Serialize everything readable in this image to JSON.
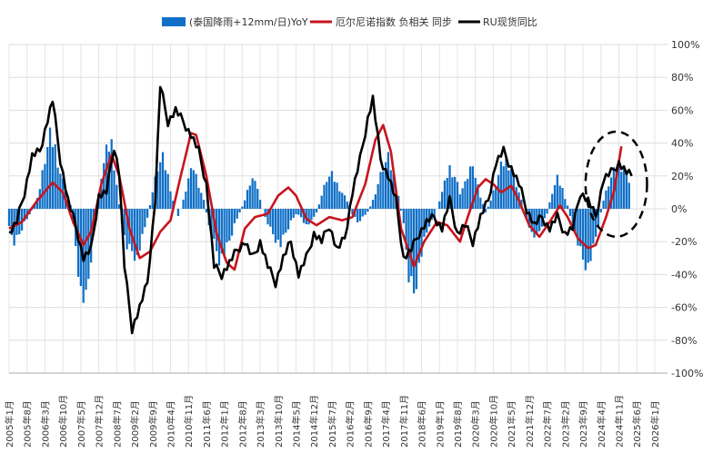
{
  "chart_data": {
    "type": "bar+line",
    "title": "",
    "legend": [
      {
        "name": "(泰国降雨+12mm/日)YoY",
        "kind": "bar",
        "color": "#0f6fc6"
      },
      {
        "name": "厄尔尼诺指数 负相关 同步",
        "kind": "line",
        "color": "#c8141e"
      },
      {
        "name": "RU现货同比",
        "kind": "line",
        "color": "#000000"
      }
    ],
    "legend_position": "top-center",
    "ylim": [
      -100,
      100
    ],
    "y_ticks": [
      "100%",
      "80%",
      "60%",
      "40%",
      "20%",
      "0%",
      "-20%",
      "-40%",
      "-60%",
      "-80%",
      "-100%"
    ],
    "y_tick_values": [
      100,
      80,
      60,
      40,
      20,
      0,
      -20,
      -40,
      -60,
      -80,
      -100
    ],
    "x_range": [
      "2005-01",
      "2026-06"
    ],
    "x_ticks": [
      "2005年1月",
      "2005年8月",
      "2006年3月",
      "2006年10月",
      "2007年5月",
      "2007年12月",
      "2008年7月",
      "2009年2月",
      "2009年9月",
      "2010年4月",
      "2010年11月",
      "2011年6月",
      "2012年1月",
      "2012年8月",
      "2013年3月",
      "2013年10月",
      "2014年5月",
      "2014年12月",
      "2015年7月",
      "2016年2月",
      "2016年9月",
      "2017年4月",
      "2017年11月",
      "2018年6月",
      "2019年1月",
      "2019年8月",
      "2020年3月",
      "2020年10月",
      "2021年5月",
      "2021年12月",
      "2022年7月",
      "2023年2月",
      "2023年9月",
      "2024年4月",
      "2024年11月",
      "2025年6月",
      "2026年1月"
    ],
    "grid": true,
    "series": [
      {
        "name": "(泰国降雨+12mm/日)YoY",
        "type": "bar",
        "anchors": [
          [
            "2005-01",
            -12
          ],
          [
            "2005-03",
            -20
          ],
          [
            "2005-05",
            -15
          ],
          [
            "2005-07",
            -8
          ],
          [
            "2005-09",
            -4
          ],
          [
            "2005-11",
            3
          ],
          [
            "2006-01",
            12
          ],
          [
            "2006-03",
            30
          ],
          [
            "2006-05",
            43
          ],
          [
            "2006-07",
            37
          ],
          [
            "2006-09",
            22
          ],
          [
            "2006-11",
            12
          ],
          [
            "2007-01",
            2
          ],
          [
            "2007-03",
            -22
          ],
          [
            "2007-05",
            -50
          ],
          [
            "2007-07",
            -58
          ],
          [
            "2007-09",
            -30
          ],
          [
            "2007-11",
            -5
          ],
          [
            "2008-01",
            20
          ],
          [
            "2008-03",
            34
          ],
          [
            "2008-05",
            40
          ],
          [
            "2008-07",
            15
          ],
          [
            "2008-09",
            -10
          ],
          [
            "2008-11",
            -22
          ],
          [
            "2009-01",
            -25
          ],
          [
            "2009-03",
            -30
          ],
          [
            "2009-05",
            -18
          ],
          [
            "2009-07",
            -5
          ],
          [
            "2009-09",
            10
          ],
          [
            "2009-11",
            25
          ],
          [
            "2010-01",
            30
          ],
          [
            "2010-03",
            20
          ],
          [
            "2010-05",
            5
          ],
          [
            "2010-07",
            -5
          ],
          [
            "2010-09",
            5
          ],
          [
            "2010-11",
            18
          ],
          [
            "2011-01",
            25
          ],
          [
            "2011-03",
            15
          ],
          [
            "2011-05",
            5
          ],
          [
            "2011-07",
            -10
          ],
          [
            "2011-09",
            -20
          ],
          [
            "2011-11",
            -30
          ],
          [
            "2012-01",
            -28
          ],
          [
            "2012-03",
            -20
          ],
          [
            "2012-05",
            -10
          ],
          [
            "2012-07",
            -2
          ],
          [
            "2012-09",
            5
          ],
          [
            "2012-11",
            15
          ],
          [
            "2013-01",
            20
          ],
          [
            "2013-03",
            5
          ],
          [
            "2013-05",
            -5
          ],
          [
            "2013-07",
            -12
          ],
          [
            "2013-09",
            -18
          ],
          [
            "2013-11",
            -22
          ],
          [
            "2014-01",
            -15
          ],
          [
            "2014-03",
            -8
          ],
          [
            "2014-05",
            -3
          ],
          [
            "2014-07",
            -5
          ],
          [
            "2014-09",
            -10
          ],
          [
            "2014-11",
            -8
          ],
          [
            "2015-01",
            -2
          ],
          [
            "2015-03",
            8
          ],
          [
            "2015-05",
            18
          ],
          [
            "2015-07",
            20
          ],
          [
            "2015-09",
            15
          ],
          [
            "2015-11",
            10
          ],
          [
            "2016-01",
            5
          ],
          [
            "2016-03",
            -3
          ],
          [
            "2016-05",
            -8
          ],
          [
            "2016-07",
            -5
          ],
          [
            "2016-09",
            -2
          ],
          [
            "2016-11",
            5
          ],
          [
            "2017-01",
            15
          ],
          [
            "2017-03",
            25
          ],
          [
            "2017-05",
            30
          ],
          [
            "2017-07",
            20
          ],
          [
            "2017-09",
            8
          ],
          [
            "2017-11",
            -10
          ],
          [
            "2018-01",
            -40
          ],
          [
            "2018-03",
            -50
          ],
          [
            "2018-05",
            -35
          ],
          [
            "2018-07",
            -20
          ],
          [
            "2018-09",
            -10
          ],
          [
            "2018-11",
            -5
          ],
          [
            "2019-01",
            5
          ],
          [
            "2019-03",
            15
          ],
          [
            "2019-05",
            25
          ],
          [
            "2019-07",
            20
          ],
          [
            "2019-09",
            10
          ],
          [
            "2019-11",
            15
          ],
          [
            "2020-01",
            25
          ],
          [
            "2020-03",
            20
          ],
          [
            "2020-05",
            8
          ],
          [
            "2020-07",
            -2
          ],
          [
            "2020-09",
            5
          ],
          [
            "2020-11",
            15
          ],
          [
            "2021-01",
            25
          ],
          [
            "2021-03",
            30
          ],
          [
            "2021-05",
            25
          ],
          [
            "2021-07",
            15
          ],
          [
            "2021-09",
            5
          ],
          [
            "2021-11",
            -5
          ],
          [
            "2022-01",
            -15
          ],
          [
            "2022-03",
            -18
          ],
          [
            "2022-05",
            -10
          ],
          [
            "2022-07",
            -3
          ],
          [
            "2022-09",
            10
          ],
          [
            "2022-11",
            18
          ],
          [
            "2023-01",
            12
          ],
          [
            "2023-03",
            2
          ],
          [
            "2023-05",
            -10
          ],
          [
            "2023-07",
            -20
          ],
          [
            "2023-09",
            -30
          ],
          [
            "2023-11",
            -35
          ],
          [
            "2024-01",
            -25
          ],
          [
            "2024-03",
            -10
          ],
          [
            "2024-05",
            5
          ],
          [
            "2024-07",
            15
          ],
          [
            "2024-09",
            22
          ],
          [
            "2024-11",
            28
          ],
          [
            "2025-01",
            25
          ],
          [
            "2025-03",
            18
          ]
        ]
      },
      {
        "name": "厄尔尼诺指数 负相关 同步",
        "type": "line",
        "anchors": [
          [
            "2005-01",
            -12
          ],
          [
            "2005-06",
            -8
          ],
          [
            "2005-12",
            5
          ],
          [
            "2006-06",
            16
          ],
          [
            "2006-10",
            10
          ],
          [
            "2007-02",
            -8
          ],
          [
            "2007-06",
            -22
          ],
          [
            "2007-09",
            -14
          ],
          [
            "2008-01",
            15
          ],
          [
            "2008-05",
            33
          ],
          [
            "2008-08",
            20
          ],
          [
            "2008-12",
            -12
          ],
          [
            "2009-04",
            -30
          ],
          [
            "2009-08",
            -26
          ],
          [
            "2009-12",
            -14
          ],
          [
            "2010-04",
            -7
          ],
          [
            "2010-08",
            20
          ],
          [
            "2010-12",
            46
          ],
          [
            "2011-02",
            45
          ],
          [
            "2011-06",
            20
          ],
          [
            "2011-10",
            -15
          ],
          [
            "2012-02",
            -33
          ],
          [
            "2012-05",
            -37
          ],
          [
            "2012-09",
            -12
          ],
          [
            "2013-01",
            -5
          ],
          [
            "2013-06",
            -3
          ],
          [
            "2013-10",
            8
          ],
          [
            "2014-02",
            13
          ],
          [
            "2014-05",
            8
          ],
          [
            "2014-09",
            -6
          ],
          [
            "2015-01",
            -10
          ],
          [
            "2015-06",
            -5
          ],
          [
            "2015-11",
            -7
          ],
          [
            "2016-03",
            -5
          ],
          [
            "2016-08",
            15
          ],
          [
            "2016-12",
            42
          ],
          [
            "2017-03",
            51
          ],
          [
            "2017-06",
            35
          ],
          [
            "2017-10",
            -12
          ],
          [
            "2018-03",
            -35
          ],
          [
            "2018-07",
            -20
          ],
          [
            "2018-12",
            -8
          ],
          [
            "2019-04",
            -10
          ],
          [
            "2019-09",
            -20
          ],
          [
            "2019-12",
            -5
          ],
          [
            "2020-04",
            13
          ],
          [
            "2020-07",
            18
          ],
          [
            "2020-10",
            15
          ],
          [
            "2021-01",
            10
          ],
          [
            "2021-05",
            14
          ],
          [
            "2021-08",
            5
          ],
          [
            "2021-12",
            -10
          ],
          [
            "2022-04",
            -17
          ],
          [
            "2022-08",
            -8
          ],
          [
            "2022-12",
            2
          ],
          [
            "2023-03",
            -5
          ],
          [
            "2023-07",
            -18
          ],
          [
            "2023-11",
            -24
          ],
          [
            "2024-02",
            -22
          ],
          [
            "2024-06",
            -5
          ],
          [
            "2024-09",
            10
          ],
          [
            "2024-12",
            38
          ]
        ]
      },
      {
        "name": "RU现货同比",
        "type": "line",
        "anchors": [
          [
            "2005-01",
            -15
          ],
          [
            "2005-04",
            -8
          ],
          [
            "2005-07",
            10
          ],
          [
            "2005-10",
            32
          ],
          [
            "2006-01",
            35
          ],
          [
            "2006-04",
            54
          ],
          [
            "2006-06",
            66
          ],
          [
            "2006-09",
            30
          ],
          [
            "2006-12",
            5
          ],
          [
            "2007-03",
            -10
          ],
          [
            "2007-06",
            -30
          ],
          [
            "2007-09",
            -25
          ],
          [
            "2007-12",
            8
          ],
          [
            "2008-03",
            10
          ],
          [
            "2008-06",
            38
          ],
          [
            "2008-08",
            22
          ],
          [
            "2008-10",
            -35
          ],
          [
            "2009-01",
            -73
          ],
          [
            "2009-04",
            -60
          ],
          [
            "2009-07",
            -45
          ],
          [
            "2009-10",
            5
          ],
          [
            "2009-12",
            75
          ],
          [
            "2010-03",
            53
          ],
          [
            "2010-06",
            60
          ],
          [
            "2010-09",
            53
          ],
          [
            "2010-12",
            45
          ],
          [
            "2011-03",
            35
          ],
          [
            "2011-06",
            15
          ],
          [
            "2011-09",
            -35
          ],
          [
            "2011-12",
            -40
          ],
          [
            "2012-03",
            -33
          ],
          [
            "2012-06",
            -25
          ],
          [
            "2012-09",
            -20
          ],
          [
            "2012-12",
            -30
          ],
          [
            "2013-03",
            -20
          ],
          [
            "2013-06",
            -35
          ],
          [
            "2013-09",
            -45
          ],
          [
            "2013-12",
            -30
          ],
          [
            "2014-03",
            -20
          ],
          [
            "2014-06",
            -40
          ],
          [
            "2014-09",
            -30
          ],
          [
            "2014-12",
            -15
          ],
          [
            "2015-03",
            -20
          ],
          [
            "2015-06",
            -10
          ],
          [
            "2015-09",
            -25
          ],
          [
            "2015-12",
            -18
          ],
          [
            "2016-03",
            10
          ],
          [
            "2016-06",
            30
          ],
          [
            "2016-09",
            55
          ],
          [
            "2016-11",
            67
          ],
          [
            "2017-02",
            30
          ],
          [
            "2017-05",
            20
          ],
          [
            "2017-08",
            5
          ],
          [
            "2017-11",
            -30
          ],
          [
            "2018-02",
            -25
          ],
          [
            "2018-05",
            -15
          ],
          [
            "2018-08",
            -8
          ],
          [
            "2018-11",
            -5
          ],
          [
            "2019-02",
            -12
          ],
          [
            "2019-05",
            5
          ],
          [
            "2019-08",
            -15
          ],
          [
            "2019-11",
            -10
          ],
          [
            "2020-02",
            -20
          ],
          [
            "2020-05",
            -5
          ],
          [
            "2020-08",
            5
          ],
          [
            "2020-11",
            28
          ],
          [
            "2021-02",
            35
          ],
          [
            "2021-05",
            25
          ],
          [
            "2021-08",
            15
          ],
          [
            "2021-11",
            0
          ],
          [
            "2022-02",
            -10
          ],
          [
            "2022-05",
            -5
          ],
          [
            "2022-08",
            -12
          ],
          [
            "2022-11",
            -5
          ],
          [
            "2023-02",
            -15
          ],
          [
            "2023-05",
            -12
          ],
          [
            "2023-08",
            10
          ],
          [
            "2023-11",
            5
          ],
          [
            "2024-02",
            -5
          ],
          [
            "2024-05",
            18
          ],
          [
            "2024-08",
            22
          ],
          [
            "2024-11",
            28
          ],
          [
            "2025-02",
            22
          ],
          [
            "2025-04",
            20
          ]
        ]
      }
    ],
    "annotation": {
      "type": "dashed-ellipse",
      "around": "2024-2025"
    }
  }
}
